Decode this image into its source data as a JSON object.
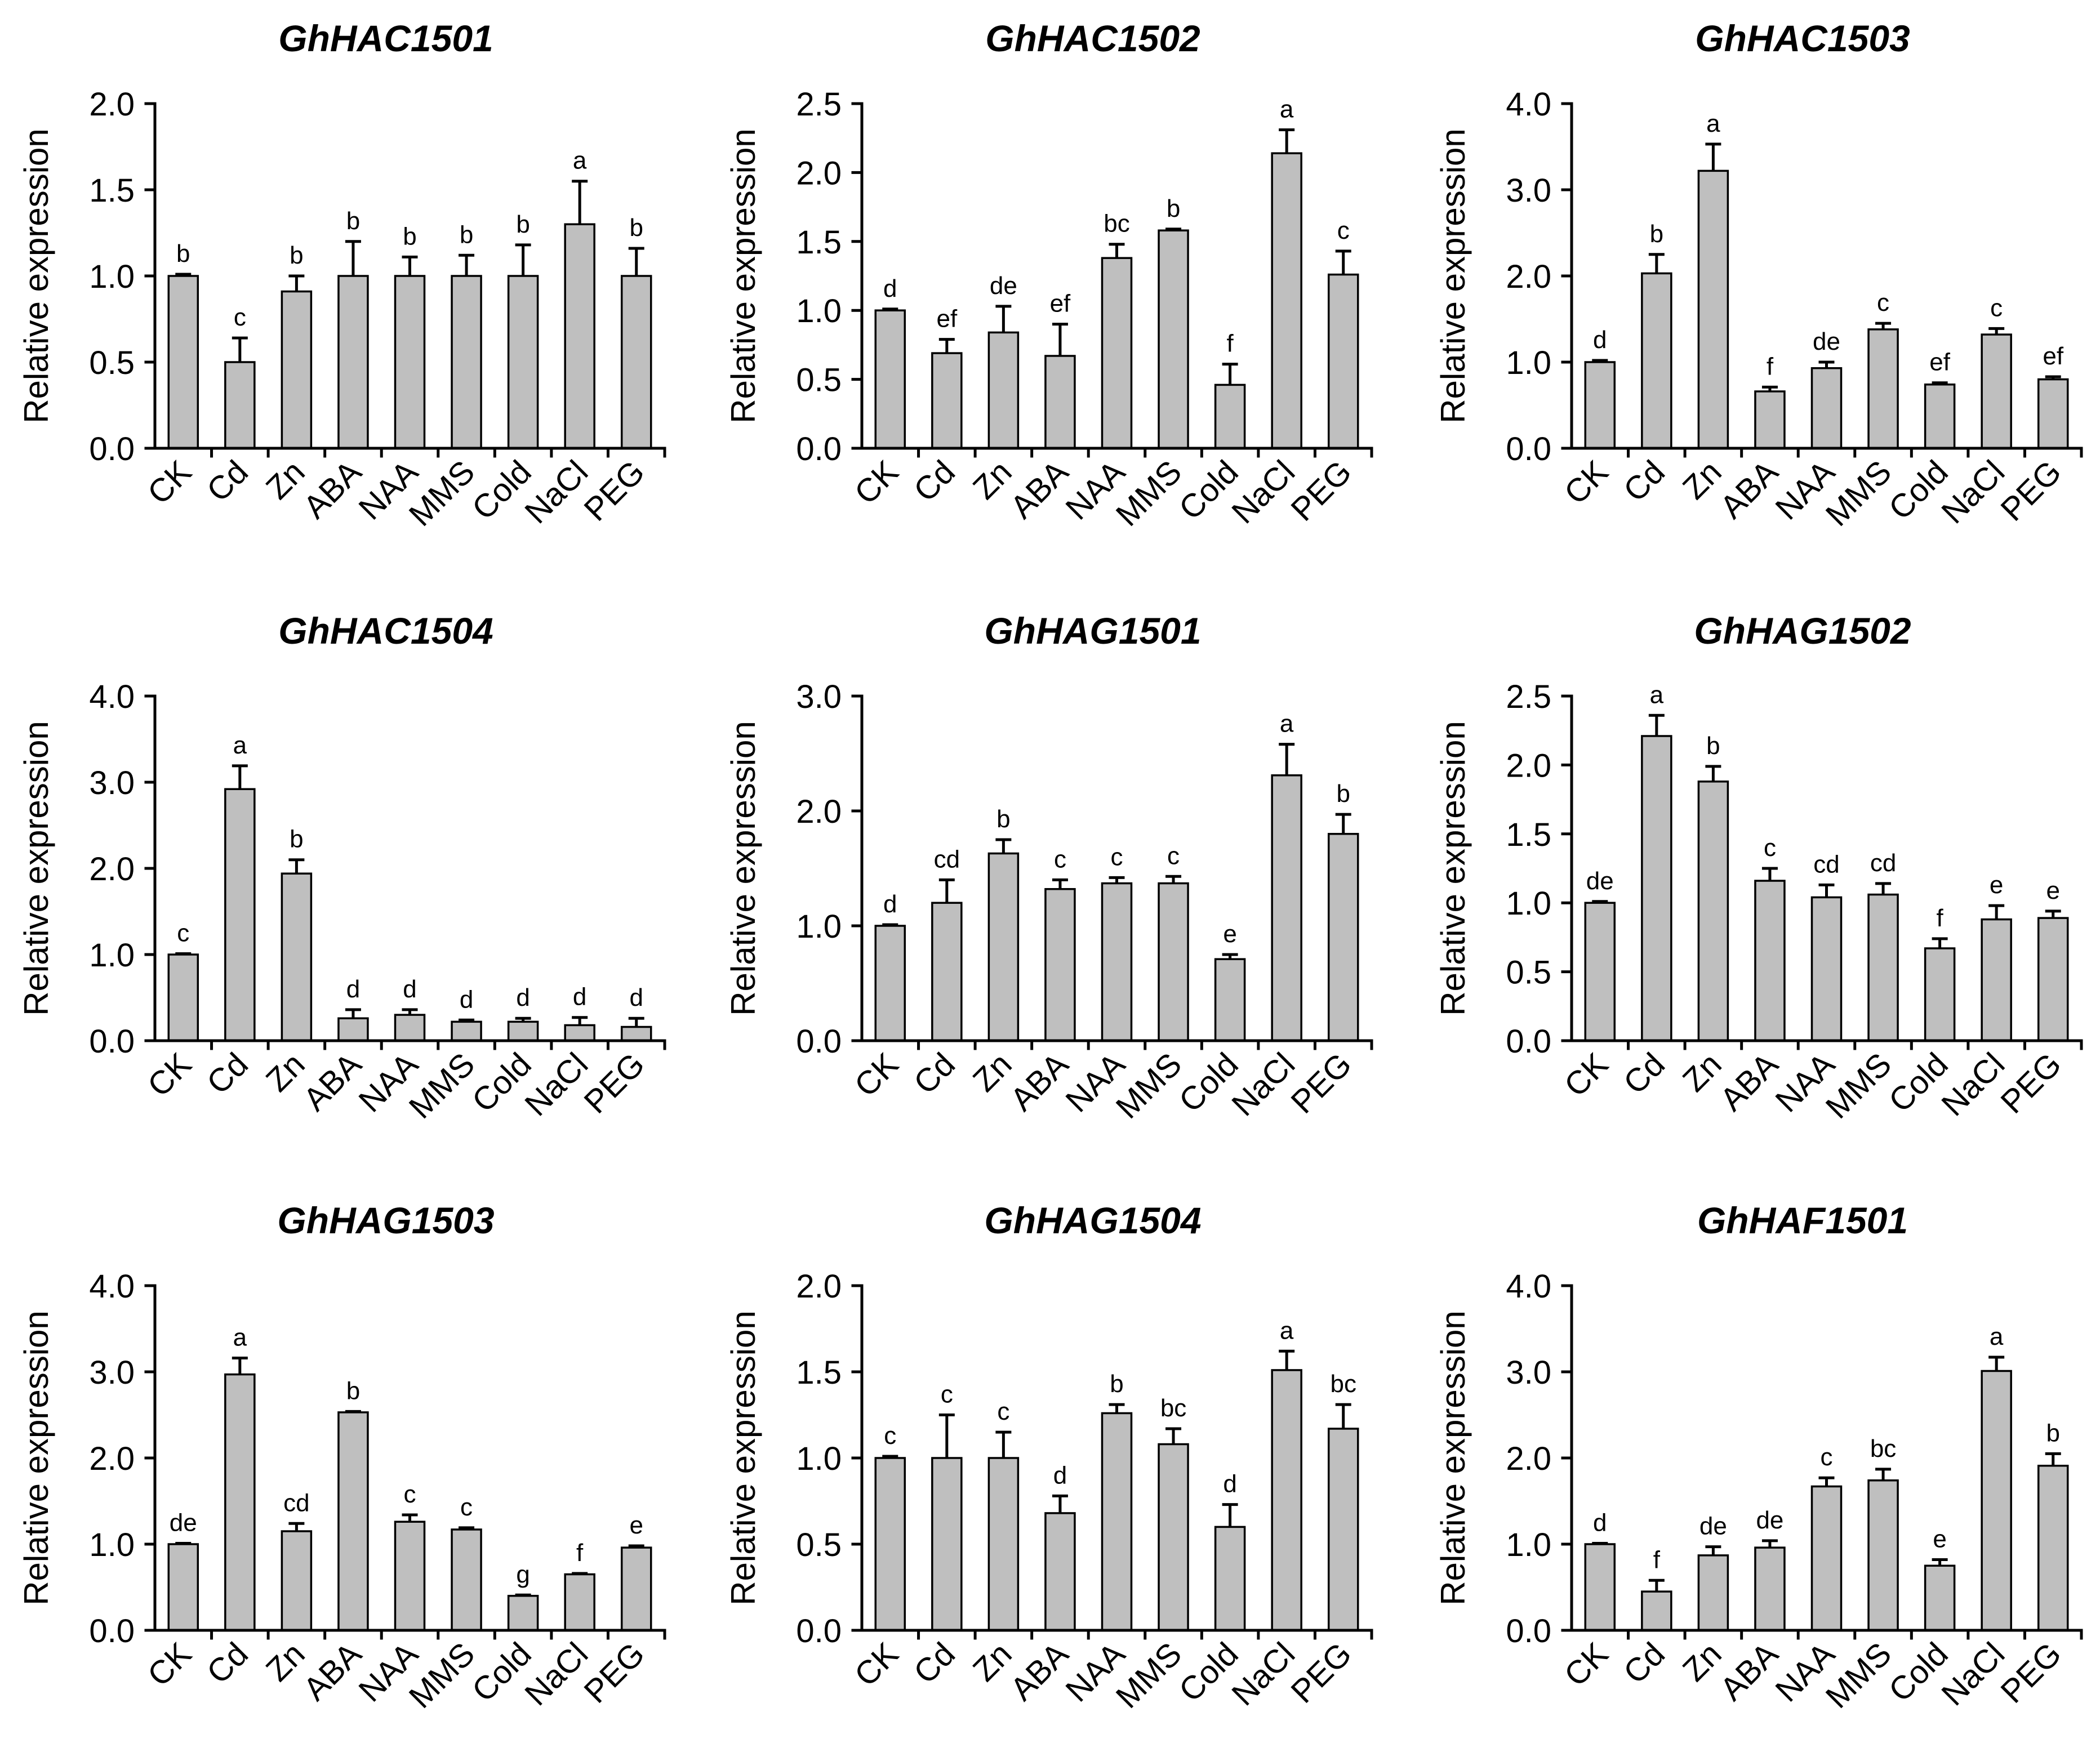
{
  "colors": {
    "background": "#ffffff",
    "bar_fill": "#bfbfbf",
    "bar_outline": "#000000",
    "axis": "#000000"
  },
  "chart_data": [
    {
      "type": "bar",
      "title": "GhHAC1501",
      "ylabel": "Relative expression",
      "categories": [
        "CK",
        "Cd",
        "Zn",
        "ABA",
        "NAA",
        "MMS",
        "Cold",
        "NaCl",
        "PEG"
      ],
      "values": [
        1.0,
        0.5,
        0.91,
        1.0,
        1.0,
        1.0,
        1.0,
        1.3,
        1.0
      ],
      "errors": [
        0.01,
        0.14,
        0.09,
        0.2,
        0.11,
        0.12,
        0.18,
        0.25,
        0.16
      ],
      "letters": [
        "b",
        "c",
        "b",
        "b",
        "b",
        "b",
        "b",
        "a",
        "b"
      ],
      "ylim": [
        0,
        2.0
      ],
      "yticks": [
        "0.0",
        "0.5",
        "1.0",
        "1.5",
        "2.0"
      ]
    },
    {
      "type": "bar",
      "title": "GhHAC1502",
      "ylabel": "Relative expression",
      "categories": [
        "CK",
        "Cd",
        "Zn",
        "ABA",
        "NAA",
        "MMS",
        "Cold",
        "NaCl",
        "PEG"
      ],
      "values": [
        1.0,
        0.69,
        0.84,
        0.67,
        1.38,
        1.58,
        0.46,
        2.14,
        1.26
      ],
      "errors": [
        0.01,
        0.1,
        0.19,
        0.23,
        0.1,
        0.01,
        0.15,
        0.17,
        0.17
      ],
      "letters": [
        "d",
        "ef",
        "de",
        "ef",
        "bc",
        "b",
        "f",
        "a",
        "c"
      ],
      "ylim": [
        0,
        2.5
      ],
      "yticks": [
        "0.0",
        "0.5",
        "1.0",
        "1.5",
        "2.0",
        "2.5"
      ]
    },
    {
      "type": "bar",
      "title": "GhHAC1503",
      "ylabel": "Relative expression",
      "categories": [
        "CK",
        "Cd",
        "Zn",
        "ABA",
        "NAA",
        "MMS",
        "Cold",
        "NaCl",
        "PEG"
      ],
      "values": [
        1.0,
        2.03,
        3.22,
        0.66,
        0.93,
        1.38,
        0.74,
        1.32,
        0.8
      ],
      "errors": [
        0.02,
        0.22,
        0.31,
        0.05,
        0.07,
        0.07,
        0.02,
        0.07,
        0.03
      ],
      "letters": [
        "d",
        "b",
        "a",
        "f",
        "de",
        "c",
        "ef",
        "c",
        "ef"
      ],
      "ylim": [
        0,
        4.0
      ],
      "yticks": [
        "0.0",
        "1.0",
        "2.0",
        "3.0",
        "4.0"
      ]
    },
    {
      "type": "bar",
      "title": "GhHAC1504",
      "ylabel": "Relative expression",
      "categories": [
        "CK",
        "Cd",
        "Zn",
        "ABA",
        "NAA",
        "MMS",
        "Cold",
        "NaCl",
        "PEG"
      ],
      "values": [
        1.0,
        2.92,
        1.94,
        0.26,
        0.3,
        0.22,
        0.22,
        0.18,
        0.16
      ],
      "errors": [
        0.01,
        0.27,
        0.16,
        0.1,
        0.06,
        0.02,
        0.04,
        0.09,
        0.1
      ],
      "letters": [
        "c",
        "a",
        "b",
        "d",
        "d",
        "d",
        "d",
        "d",
        "d"
      ],
      "ylim": [
        0,
        4.0
      ],
      "yticks": [
        "0.0",
        "1.0",
        "2.0",
        "3.0",
        "4.0"
      ]
    },
    {
      "type": "bar",
      "title": "GhHAG1501",
      "ylabel": "Relative expression",
      "categories": [
        "CK",
        "Cd",
        "Zn",
        "ABA",
        "NAA",
        "MMS",
        "Cold",
        "NaCl",
        "PEG"
      ],
      "values": [
        1.0,
        1.2,
        1.63,
        1.32,
        1.37,
        1.37,
        0.71,
        2.31,
        1.8
      ],
      "errors": [
        0.01,
        0.2,
        0.12,
        0.08,
        0.05,
        0.06,
        0.04,
        0.27,
        0.17
      ],
      "letters": [
        "d",
        "cd",
        "b",
        "c",
        "c",
        "c",
        "e",
        "a",
        "b"
      ],
      "ylim": [
        0,
        3.0
      ],
      "yticks": [
        "0.0",
        "1.0",
        "2.0",
        "3.0"
      ]
    },
    {
      "type": "bar",
      "title": "GhHAG1502",
      "ylabel": "Relative expression",
      "categories": [
        "CK",
        "Cd",
        "Zn",
        "ABA",
        "NAA",
        "MMS",
        "Cold",
        "NaCl",
        "PEG"
      ],
      "values": [
        1.0,
        2.21,
        1.88,
        1.16,
        1.04,
        1.06,
        0.67,
        0.88,
        0.89
      ],
      "errors": [
        0.01,
        0.15,
        0.11,
        0.09,
        0.09,
        0.08,
        0.07,
        0.1,
        0.05
      ],
      "letters": [
        "de",
        "a",
        "b",
        "c",
        "cd",
        "cd",
        "f",
        "e",
        "e"
      ],
      "ylim": [
        0,
        2.5
      ],
      "yticks": [
        "0.0",
        "0.5",
        "1.0",
        "1.5",
        "2.0",
        "2.5"
      ]
    },
    {
      "type": "bar",
      "title": "GhHAG1503",
      "ylabel": "Relative expression",
      "categories": [
        "CK",
        "Cd",
        "Zn",
        "ABA",
        "NAA",
        "MMS",
        "Cold",
        "NaCl",
        "PEG"
      ],
      "values": [
        1.0,
        2.97,
        1.15,
        2.53,
        1.26,
        1.17,
        0.4,
        0.65,
        0.96
      ],
      "errors": [
        0.01,
        0.19,
        0.09,
        0.01,
        0.08,
        0.02,
        0.01,
        0.01,
        0.02
      ],
      "letters": [
        "de",
        "a",
        "cd",
        "b",
        "c",
        "c",
        "g",
        "f",
        "e"
      ],
      "ylim": [
        0,
        4.0
      ],
      "yticks": [
        "0.0",
        "1.0",
        "2.0",
        "3.0",
        "4.0"
      ]
    },
    {
      "type": "bar",
      "title": "GhHAG1504",
      "ylabel": "Relative expression",
      "categories": [
        "CK",
        "Cd",
        "Zn",
        "ABA",
        "NAA",
        "MMS",
        "Cold",
        "NaCl",
        "PEG"
      ],
      "values": [
        1.0,
        1.0,
        1.0,
        0.68,
        1.26,
        1.08,
        0.6,
        1.51,
        1.17
      ],
      "errors": [
        0.01,
        0.25,
        0.15,
        0.1,
        0.05,
        0.09,
        0.13,
        0.11,
        0.14
      ],
      "letters": [
        "c",
        "c",
        "c",
        "d",
        "b",
        "bc",
        "d",
        "a",
        "bc"
      ],
      "ylim": [
        0,
        2.0
      ],
      "yticks": [
        "0.0",
        "0.5",
        "1.0",
        "1.5",
        "2.0"
      ]
    },
    {
      "type": "bar",
      "title": "GhHAF1501",
      "ylabel": "Relative expression",
      "categories": [
        "CK",
        "Cd",
        "Zn",
        "ABA",
        "NAA",
        "MMS",
        "Cold",
        "NaCl",
        "PEG"
      ],
      "values": [
        1.0,
        0.45,
        0.87,
        0.96,
        1.67,
        1.74,
        0.75,
        3.01,
        1.91
      ],
      "errors": [
        0.01,
        0.13,
        0.1,
        0.08,
        0.1,
        0.13,
        0.07,
        0.16,
        0.14
      ],
      "letters": [
        "d",
        "f",
        "de",
        "de",
        "c",
        "bc",
        "e",
        "a",
        "b"
      ],
      "ylim": [
        0,
        4.0
      ],
      "yticks": [
        "0.0",
        "1.0",
        "2.0",
        "3.0",
        "4.0"
      ]
    }
  ]
}
